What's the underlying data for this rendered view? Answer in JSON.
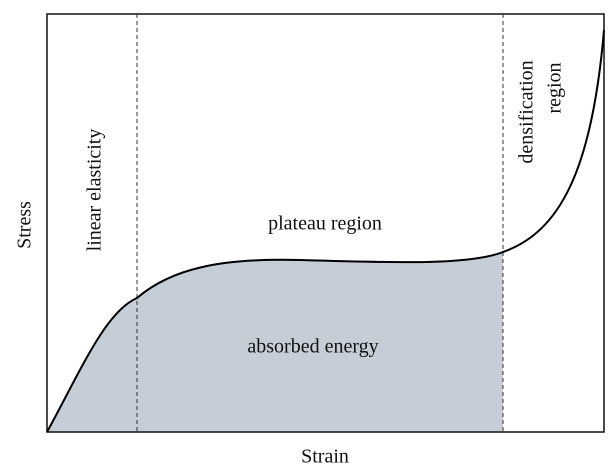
{
  "axes": {
    "x_label": "Strain",
    "y_label": "Stress"
  },
  "regions": [
    {
      "lines": [
        "linear elasticity"
      ]
    },
    {
      "lines": [
        "plateau region"
      ]
    },
    {
      "lines": [
        "densification",
        "region"
      ]
    }
  ],
  "area_label": "absorbed energy"
}
